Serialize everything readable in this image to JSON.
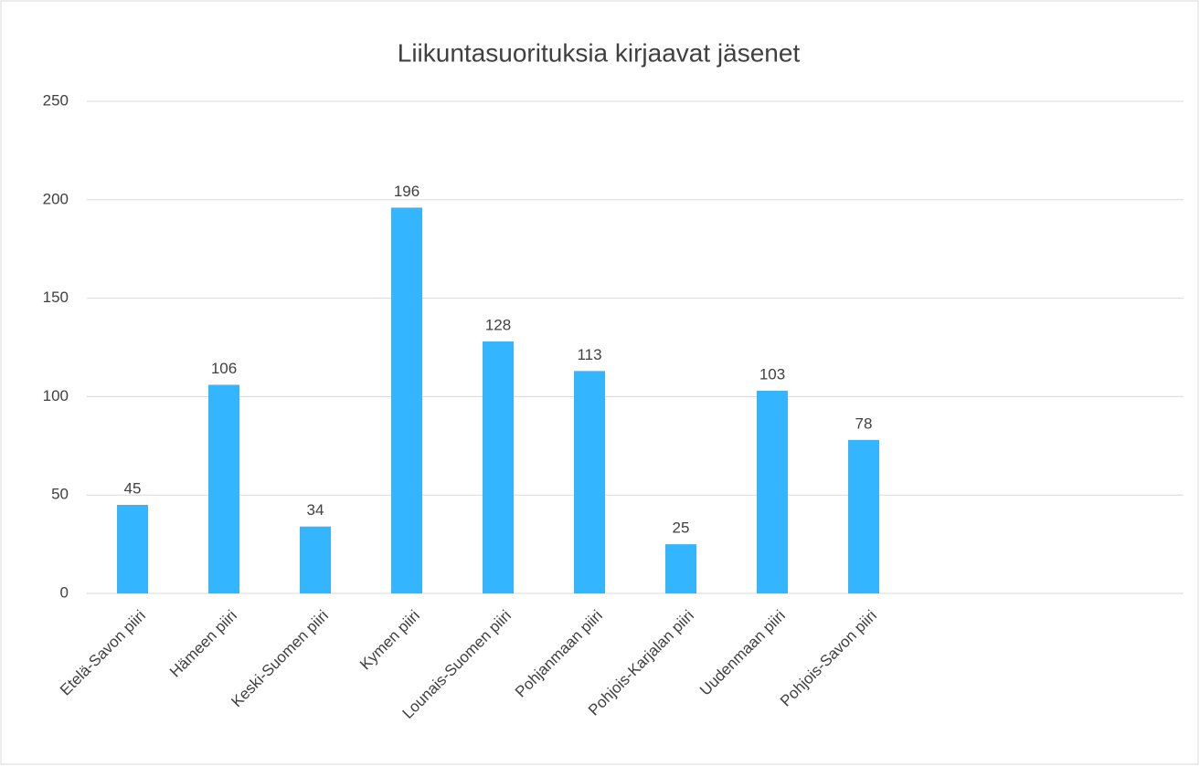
{
  "chart_data": {
    "type": "bar",
    "title": "Liikuntasuorituksia kirjaavat jäsenet",
    "categories": [
      "Etelä-Savon piiri",
      "Hämeen piiri",
      "Keski-Suomen piiri",
      "Kymen piiri",
      "Lounais-Suomen piiri",
      "Pohjanmaan piiri",
      "Pohjois-Karjalan piiri",
      "Uudenmaan piiri",
      "Pohjois-Savon piiri",
      null,
      null,
      null
    ],
    "values": [
      45,
      106,
      34,
      196,
      128,
      113,
      25,
      103,
      78,
      null,
      null,
      null
    ],
    "color": "#33b6ff",
    "ylim": [
      0,
      250
    ],
    "yticks": [
      0,
      50,
      100,
      150,
      200,
      250
    ],
    "grid": true
  }
}
